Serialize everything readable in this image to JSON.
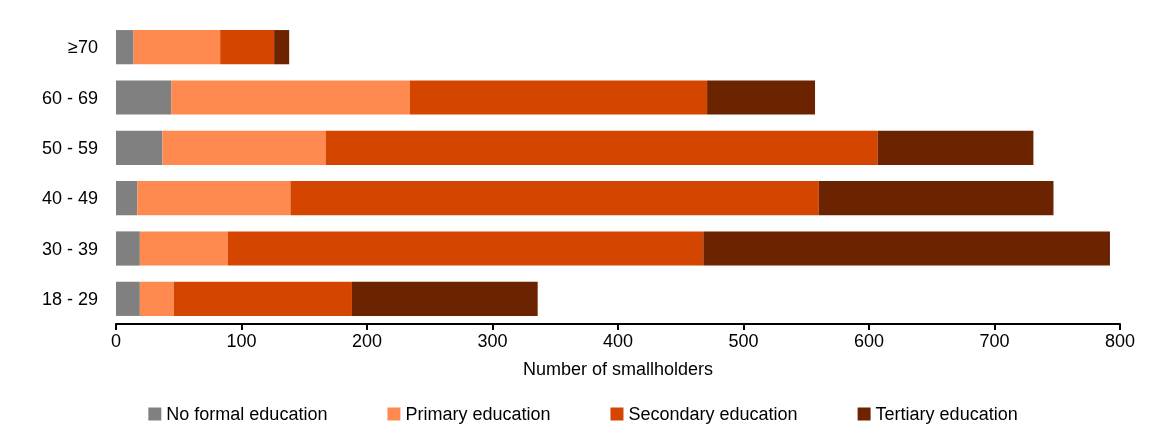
{
  "chart_data": {
    "type": "bar",
    "orientation": "horizontal",
    "stacked": true,
    "xlabel": "Number of smallholders",
    "categories": [
      "≥70",
      "60 - 69",
      "50 - 59",
      "40 - 49",
      "30 - 39",
      "18 - 29"
    ],
    "series": [
      {
        "name": "No formal education",
        "color": "#808080",
        "values": [
          14,
          44,
          37,
          17,
          19,
          19
        ]
      },
      {
        "name": "Primary education",
        "color": "#ff8a50",
        "values": [
          69,
          190,
          130,
          122,
          70,
          27
        ]
      },
      {
        "name": "Secondary education",
        "color": "#d44500",
        "values": [
          43,
          237,
          440,
          421,
          379,
          142
        ]
      },
      {
        "name": "Tertiary education",
        "color": "#6b2300",
        "values": [
          12,
          86,
          124,
          187,
          324,
          148
        ]
      }
    ],
    "xlim": [
      0,
      800
    ],
    "xticks": [
      0,
      100,
      200,
      300,
      400,
      500,
      600,
      700,
      800
    ],
    "grid": false,
    "legend": "bottom"
  }
}
